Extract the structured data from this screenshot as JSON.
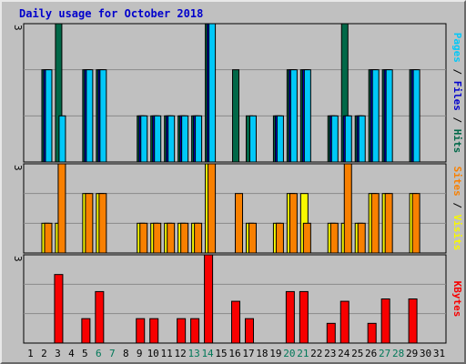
{
  "title": "Daily usage for October 2018",
  "colors": {
    "hits": "#006848",
    "files": "#0000cc",
    "pages": "#00c8f8",
    "visits": "#f8f800",
    "sites": "#f88000",
    "kbytes": "#f80000",
    "weekday": "#000000",
    "weekend": "#007858"
  },
  "side_labels": {
    "top": [
      {
        "text": "Pages",
        "color": "#00c8f8"
      },
      {
        "text": " / ",
        "color": "#000000"
      },
      {
        "text": "Files",
        "color": "#0000cc"
      },
      {
        "text": " / ",
        "color": "#000000"
      },
      {
        "text": "Hits",
        "color": "#006848"
      }
    ],
    "middle": [
      {
        "text": "Sites",
        "color": "#f88000"
      },
      {
        "text": " / ",
        "color": "#000000"
      },
      {
        "text": "Visits",
        "color": "#f8f800"
      }
    ],
    "bottom": [
      {
        "text": "KBytes",
        "color": "#f80000"
      }
    ]
  },
  "chart_data": {
    "type": "bar",
    "title": "Daily usage for October 2018",
    "categories": [
      "1",
      "2",
      "3",
      "4",
      "5",
      "6",
      "7",
      "8",
      "9",
      "10",
      "11",
      "12",
      "13",
      "14",
      "15",
      "16",
      "17",
      "18",
      "19",
      "20",
      "21",
      "22",
      "23",
      "24",
      "25",
      "26",
      "27",
      "28",
      "29",
      "30",
      "31"
    ],
    "weekend_days": [
      6,
      7,
      13,
      14,
      20,
      21,
      27,
      28
    ],
    "panels": [
      {
        "name": "hits-files-pages",
        "max_label": "3",
        "ylim": [
          0,
          3
        ],
        "series": [
          {
            "name": "Hits",
            "color": "#006848",
            "values": [
              0,
              2,
              3,
              0,
              2,
              2,
              0,
              0,
              1,
              1,
              1,
              1,
              1,
              3,
              0,
              2,
              1,
              0,
              1,
              2,
              2,
              0,
              1,
              3,
              1,
              2,
              2,
              0,
              2,
              0,
              0
            ]
          },
          {
            "name": "Files",
            "color": "#0000cc",
            "values": [
              0,
              2,
              0,
              0,
              2,
              2,
              0,
              0,
              1,
              1,
              1,
              1,
              1,
              3,
              0,
              0,
              0,
              0,
              1,
              2,
              2,
              0,
              1,
              1,
              1,
              2,
              2,
              0,
              2,
              0,
              0
            ]
          },
          {
            "name": "Pages",
            "color": "#00c8f8",
            "values": [
              0,
              2,
              1,
              0,
              2,
              2,
              0,
              0,
              1,
              1,
              1,
              1,
              1,
              3,
              0,
              0,
              1,
              0,
              1,
              2,
              2,
              0,
              1,
              1,
              1,
              2,
              2,
              0,
              2,
              0,
              0
            ]
          }
        ]
      },
      {
        "name": "visits-sites",
        "max_label": "3",
        "ylim": [
          0,
          3
        ],
        "series": [
          {
            "name": "Visits",
            "color": "#f8f800",
            "values": [
              0,
              1,
              1,
              0,
              2,
              2,
              0,
              0,
              1,
              1,
              1,
              1,
              1,
              3,
              0,
              0,
              1,
              0,
              1,
              2,
              2,
              0,
              1,
              1,
              1,
              2,
              2,
              0,
              2,
              0,
              0
            ]
          },
          {
            "name": "Sites",
            "color": "#f88000",
            "values": [
              0,
              1,
              3,
              0,
              2,
              2,
              0,
              0,
              1,
              1,
              1,
              1,
              1,
              3,
              0,
              2,
              1,
              0,
              1,
              2,
              1,
              0,
              1,
              3,
              1,
              2,
              2,
              0,
              2,
              0,
              0
            ]
          }
        ]
      },
      {
        "name": "kbytes",
        "max_label": "3",
        "ylim": [
          0,
          3
        ],
        "series": [
          {
            "name": "KBytes",
            "color": "#f80000",
            "values": [
              0,
              0,
              2.33,
              0,
              0.83,
              1.75,
              0,
              0,
              0.83,
              0.83,
              0,
              0.83,
              0.83,
              3,
              0,
              1.42,
              0.83,
              0,
              0,
              1.75,
              1.75,
              0,
              0.67,
              1.42,
              0,
              0.67,
              1.5,
              0,
              1.5,
              0,
              0
            ]
          }
        ]
      }
    ]
  }
}
